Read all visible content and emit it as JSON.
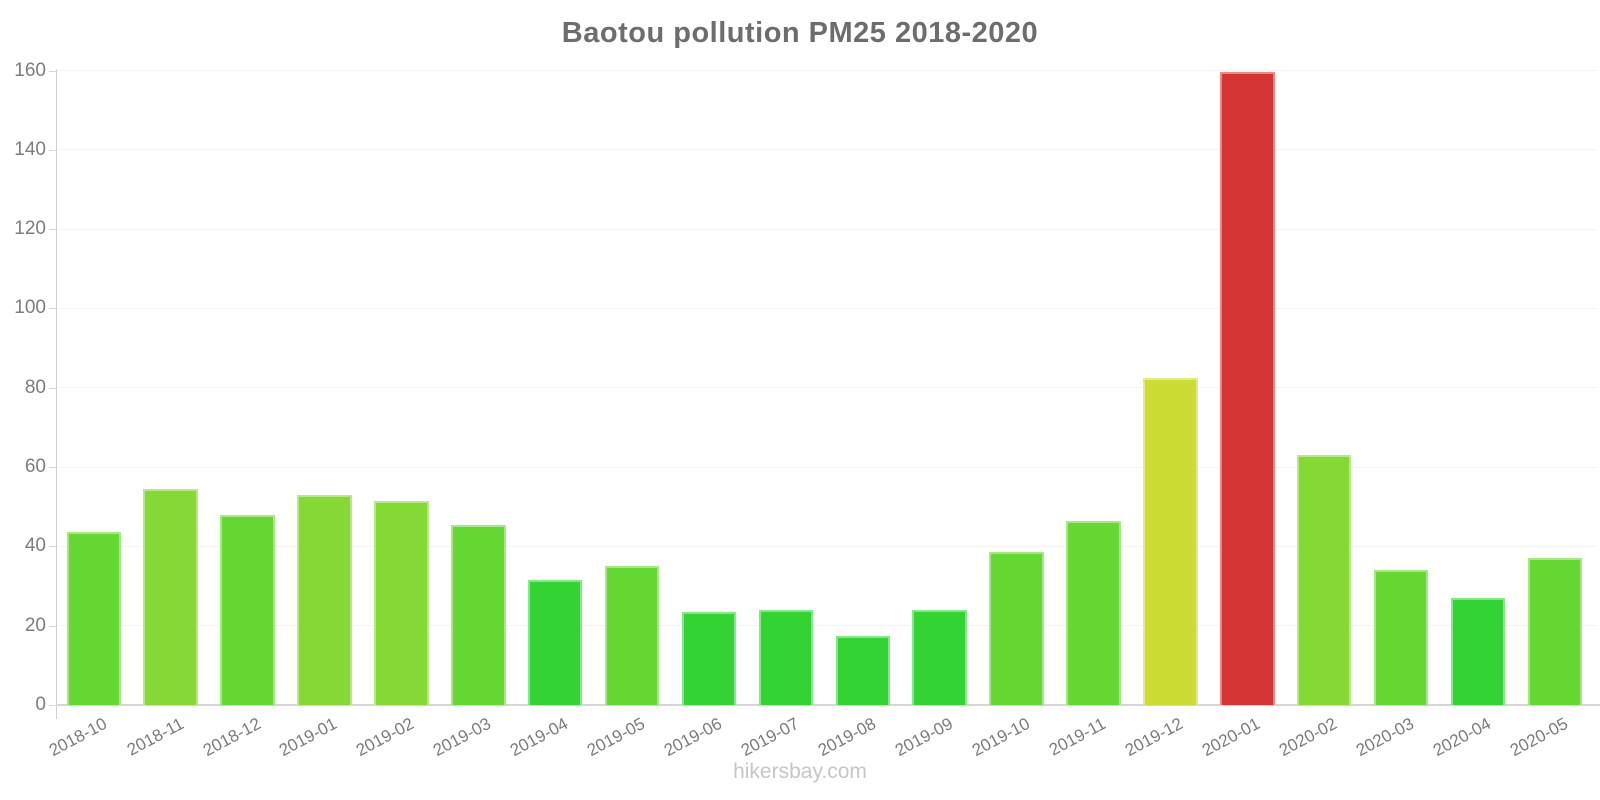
{
  "chart_data": {
    "type": "bar",
    "title": "Baotou pollution PM25 2018-2020",
    "footer": "hikersbay.com",
    "background": "#ffffff",
    "xlabel": "",
    "ylabel": "",
    "ylim": [
      0,
      160
    ],
    "yticks": [
      0,
      20,
      40,
      60,
      80,
      100,
      120,
      140,
      160
    ],
    "grid": true,
    "legend": "none",
    "categories": [
      "2018-10",
      "2018-11",
      "2018-12",
      "2019-01",
      "2019-02",
      "2019-03",
      "2019-04",
      "2019-05",
      "2019-06",
      "2019-07",
      "2019-08",
      "2019-09",
      "2019-10",
      "2019-11",
      "2019-12",
      "2020-01",
      "2020-02",
      "2020-03",
      "2020-04",
      "2020-05"
    ],
    "values": [
      43.5,
      54.5,
      48,
      53,
      51.5,
      45.5,
      31.5,
      35,
      23.5,
      24,
      17.5,
      24,
      38.5,
      46.5,
      82.5,
      159.5,
      63,
      34,
      27,
      37
    ],
    "colors": [
      "#66d833",
      "#84d935",
      "#66d833",
      "#84d935",
      "#84d935",
      "#66d833",
      "#33d333",
      "#66d833",
      "#33d333",
      "#33d333",
      "#33d333",
      "#33d333",
      "#66d833",
      "#66d833",
      "#ccdc35",
      "#d33434",
      "#84d935",
      "#66d833",
      "#33d333",
      "#66d833"
    ],
    "accent_colors": {
      "green_low": "#33d333",
      "green_mid": "#66d833",
      "green_high": "#84d935",
      "yellow": "#ccdc35",
      "red": "#d33434"
    }
  }
}
